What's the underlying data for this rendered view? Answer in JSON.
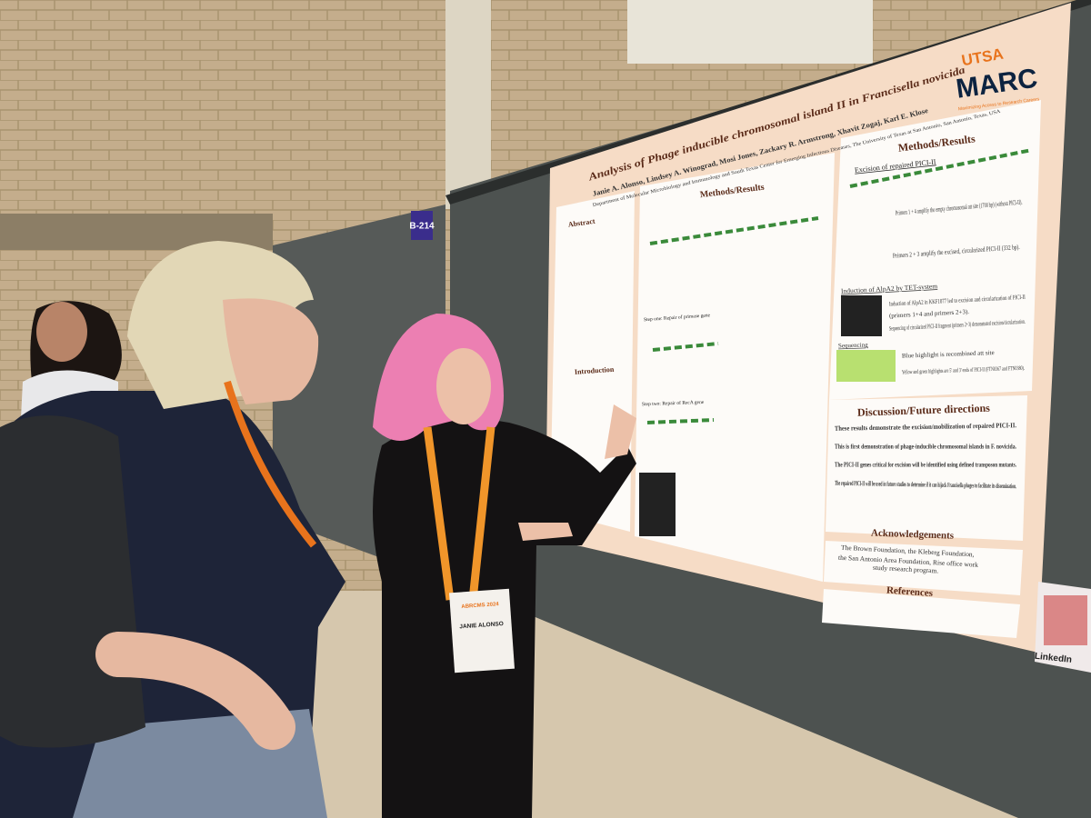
{
  "board_label": "B-214",
  "poster": {
    "title": "Analysis of Phage inducible chromosomal island II in Francisella novicida",
    "authors": "Janie A. Alonso, Lindsey A. Winograd, Mosi Jones, Zackary R. Armstrong, Xhavit Zogaj, Karl E. Klose",
    "affiliation": "Department of Molecular Microbiology and Immunology and South Texas Center for Emerging Infectious Diseases, The University of Texas at San Antonio, San Antonio, Texas, USA",
    "logo": {
      "top": "UTSA",
      "main": "MARC",
      "tagline": "Maximizing Access to Research Careers"
    },
    "abstract": {
      "heading": "Abstract"
    },
    "introduction": {
      "heading": "Introduction"
    },
    "methods_center": {
      "heading": "Methods/Results",
      "subheadings": [
        "Step one: Repair of primase gene",
        "Step two: Repair of RecA gene"
      ]
    },
    "methods_right": {
      "heading": "Methods/Results",
      "subheading": "Excision of repaired PICI-II",
      "items": [
        "Primers 1 + 4 amplify the empty chromosomal att site (1700 bp) (without PICI-II).",
        "Primers 2 + 3 amplify the excised, circularized PICI-II (332 bp).",
        "Induction of AlpA2 by TET-system",
        "Induction of AlpA2 in KKF1077 led to excision and circularization of PICI-II",
        "(primers 1+4 and primers 2+3).",
        "Sequencing of circularized PICI-II fragment (primers 2+3) demonstrated excision/circularization.",
        "Sequencing",
        "Blue highlight is recombined att site",
        "Yellow and green highlights are 5' and 3' ends of PICI-II (FTN0367 and FTN0380)."
      ]
    },
    "discussion": {
      "heading": "Discussion/Future directions",
      "items": [
        "These results demonstrate the excision/mobilization of repaired PICI-II.",
        "This is first demonstration of phage-inducible chromosomal islands in F. novicida.",
        "The PICI-II genes critical for excision will be identified using defined transposon mutants.",
        "The repaired PICI-II will be used in future studies to determine if it can hijack Francisella phages to facilitate its dissemination."
      ]
    },
    "acknowledgements": {
      "heading": "Acknowledgements",
      "lines": [
        "The Brown Foundation, the Kleberg Foundation,",
        "the San Antonio Area Foundation, Rise office work",
        "study research program."
      ]
    },
    "references": {
      "heading": "References"
    }
  },
  "badge": {
    "event": "ABRCMS 2024",
    "name": "JANIE ALONSO"
  },
  "qr_label": "LinkedIn"
}
